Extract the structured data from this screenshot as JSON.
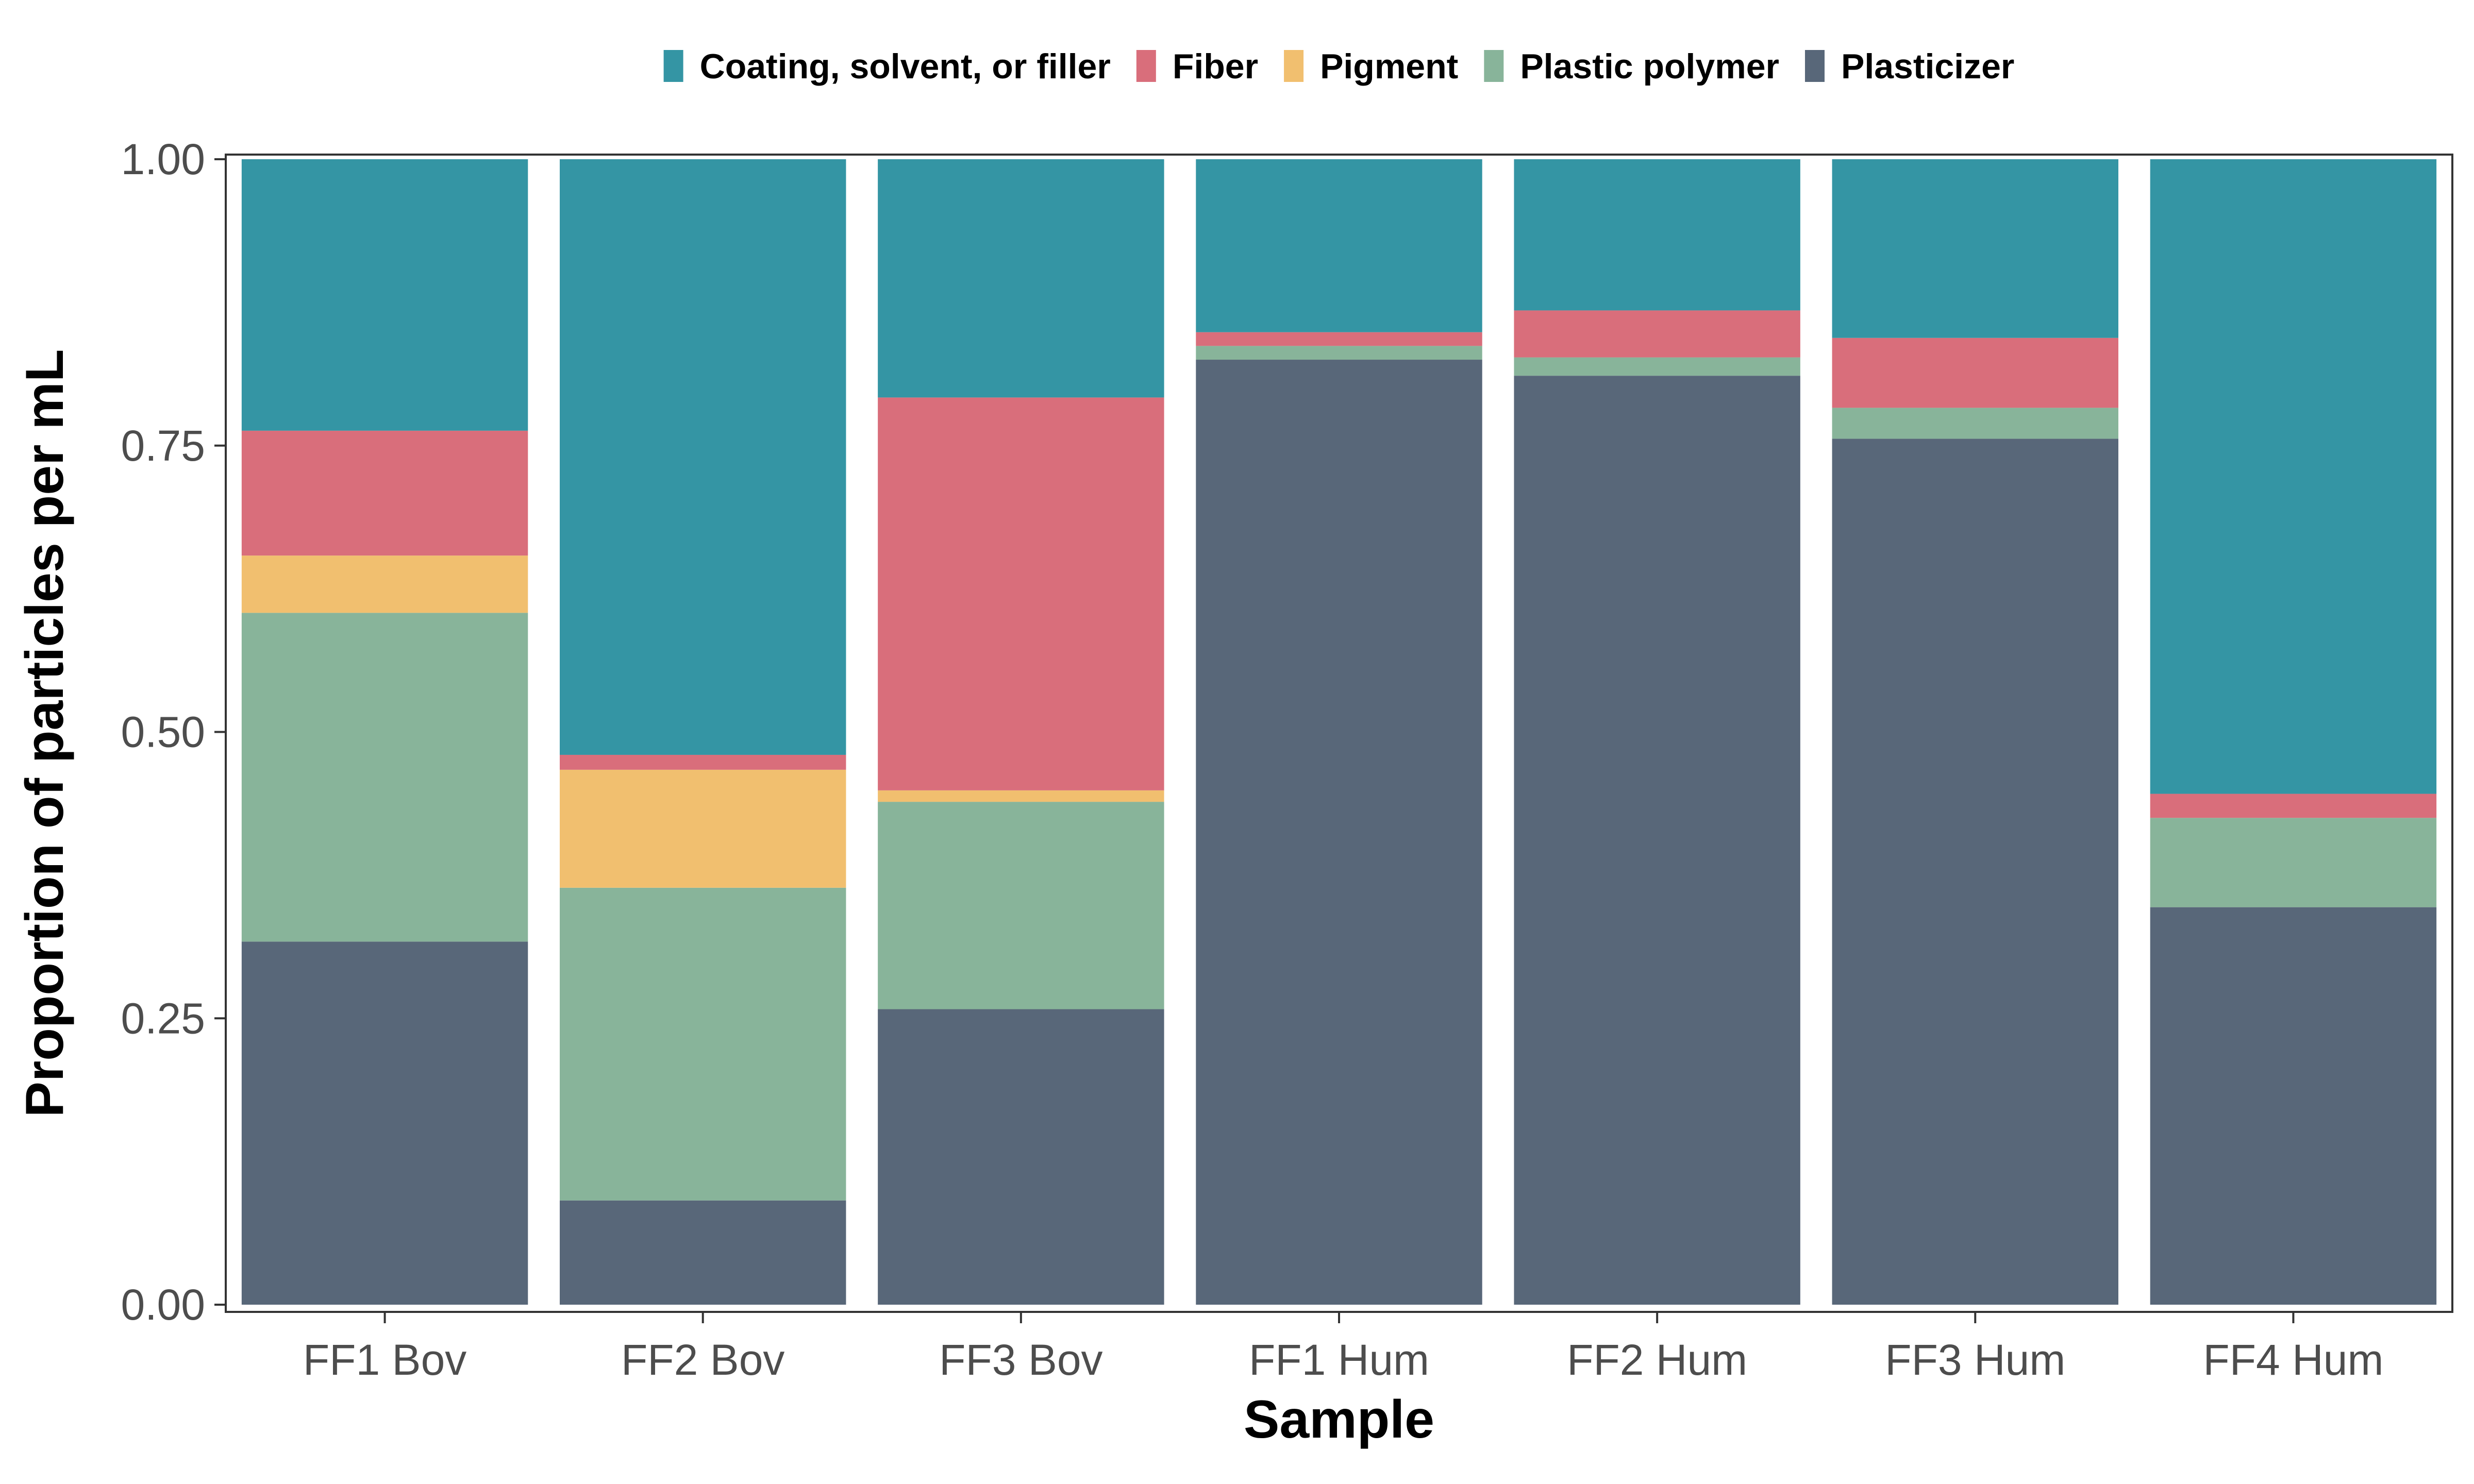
{
  "chart_data": {
    "type": "bar",
    "stacked": true,
    "xlabel": "Sample",
    "ylabel": "Proportion of particles per mL",
    "ylim": [
      0,
      1
    ],
    "yticks": [
      "0.00",
      "0.25",
      "0.50",
      "0.75",
      "1.00"
    ],
    "legend_position": "top",
    "categories": [
      "FF1 Bov",
      "FF2 Bov",
      "FF3 Bov",
      "FF1 Hum",
      "FF2 Hum",
      "FF3 Hum",
      "FF4 Hum"
    ],
    "legend_order": [
      "Coating, solvent, or filler",
      "Fiber",
      "Pigment",
      "Plastic polymer",
      "Plasticizer"
    ],
    "series": [
      {
        "name": "Plasticizer",
        "color": "#586779",
        "values": [
          0.317,
          0.091,
          0.258,
          0.825,
          0.811,
          0.756,
          0.347
        ]
      },
      {
        "name": "Plastic polymer",
        "color": "#88b49a",
        "values": [
          0.287,
          0.273,
          0.181,
          0.012,
          0.016,
          0.027,
          0.078
        ]
      },
      {
        "name": "Pigment",
        "color": "#f1bf6f",
        "values": [
          0.05,
          0.103,
          0.01,
          0.0,
          0.0,
          0.0,
          0.0
        ]
      },
      {
        "name": "Fiber",
        "color": "#d96e7b",
        "values": [
          0.109,
          0.013,
          0.343,
          0.012,
          0.041,
          0.061,
          0.021
        ]
      },
      {
        "name": "Coating, solvent, or filler",
        "color": "#3495a4",
        "values": [
          0.237,
          0.52,
          0.208,
          0.151,
          0.132,
          0.156,
          0.554
        ]
      }
    ],
    "grid": false,
    "panel_border_color": "#333333",
    "tick_color": "#333333"
  }
}
